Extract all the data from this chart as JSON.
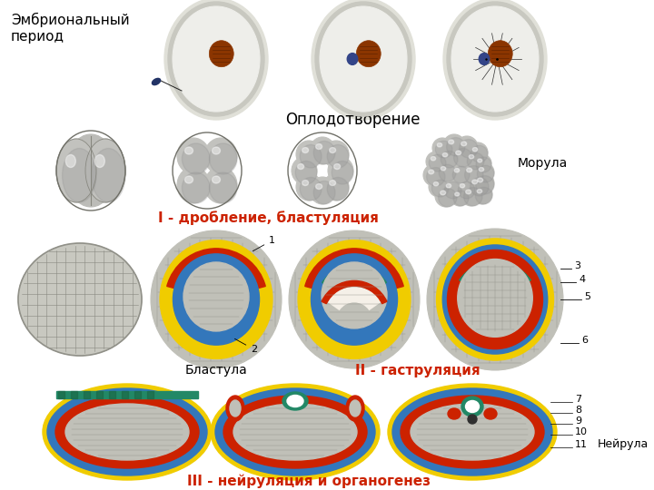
{
  "title": "Эмбриональный\nпериод",
  "bg_color": "#ffffff",
  "label_oplodotvorenie": "Оплодотворение",
  "label_morula": "Морула",
  "label_blastula": "Бластула",
  "label_drobienie": "I - дробление, бластуляция",
  "label_gastrulacia": "II - гаструляция",
  "label_neirulacia": "III - нейруляция и органогенез",
  "label_neirula": "Нейрула",
  "red_color": "#cc2200",
  "yellow": "#f0cc00",
  "blue": "#3377bb",
  "teal": "#228866",
  "red": "#cc2200",
  "brown": "#8b3500",
  "dark_blue": "#223366",
  "gray_cell": "#c0c0b8",
  "gray_light": "#d8d8d8",
  "gray_mid": "#b0b0b0",
  "gray_dark": "#888880",
  "white_egg": "#f0f0ee",
  "zona_color": "#ddddd0"
}
